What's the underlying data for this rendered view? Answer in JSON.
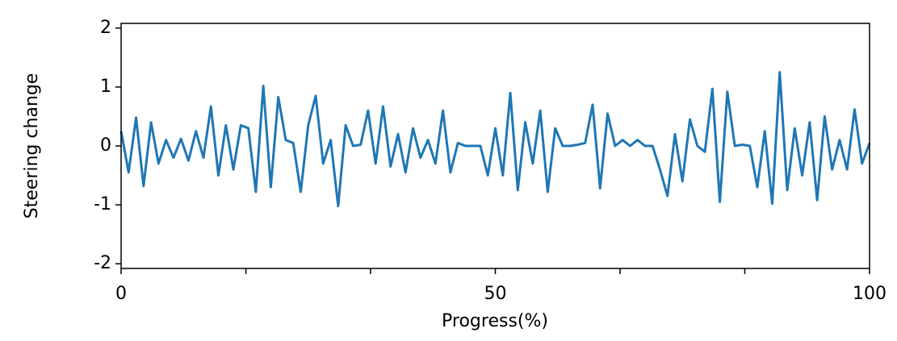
{
  "chart_data": {
    "type": "line",
    "xlabel": "Progress(%)",
    "ylabel": "Steering change",
    "x": [
      0,
      1,
      2,
      3,
      4,
      5,
      6,
      7,
      8,
      9,
      10,
      11,
      12,
      13,
      14,
      15,
      16,
      17,
      18,
      19,
      20,
      21,
      22,
      23,
      24,
      25,
      26,
      27,
      28,
      29,
      30,
      31,
      32,
      33,
      34,
      35,
      36,
      37,
      38,
      39,
      40,
      41,
      42,
      43,
      44,
      45,
      46,
      47,
      48,
      49,
      50,
      51,
      52,
      53,
      54,
      55,
      56,
      57,
      58,
      59,
      60,
      61,
      62,
      63,
      64,
      65,
      66,
      67,
      68,
      69,
      70,
      71,
      72,
      73,
      74,
      75,
      76,
      77,
      78,
      79,
      80,
      81,
      82,
      83,
      84,
      85,
      86,
      87,
      88,
      89,
      90,
      91,
      92,
      93,
      94,
      95,
      96,
      97,
      98,
      99,
      100
    ],
    "series": [
      {
        "color": "#1f77b4",
        "values": [
          0.25,
          -0.45,
          0.48,
          -0.68,
          0.4,
          -0.3,
          0.1,
          -0.2,
          0.12,
          -0.25,
          0.25,
          -0.2,
          0.67,
          -0.5,
          0.35,
          -0.4,
          0.35,
          0.3,
          -0.78,
          1.02,
          -0.7,
          0.83,
          0.1,
          0.05,
          -0.78,
          0.35,
          0.85,
          -0.3,
          0.1,
          -1.02,
          0.35,
          0.0,
          0.02,
          0.6,
          -0.3,
          0.67,
          -0.35,
          0.2,
          -0.45,
          0.3,
          -0.2,
          0.1,
          -0.3,
          0.6,
          -0.45,
          0.05,
          0.0,
          0.0,
          0.0,
          -0.5,
          0.3,
          -0.5,
          0.9,
          -0.75,
          0.4,
          -0.3,
          0.6,
          -0.78,
          0.3,
          0.0,
          0.0,
          0.02,
          0.05,
          0.7,
          -0.72,
          0.55,
          0.0,
          0.1,
          0.0,
          0.1,
          0.0,
          0.0,
          -0.4,
          -0.85,
          0.2,
          -0.6,
          0.45,
          0.0,
          -0.1,
          0.97,
          -0.95,
          0.92,
          0.0,
          0.02,
          0.0,
          -0.7,
          0.25,
          -0.98,
          1.25,
          -0.75,
          0.3,
          -0.5,
          0.4,
          -0.92,
          0.5,
          -0.4,
          0.1,
          -0.4,
          0.62,
          -0.3,
          0.05
        ]
      }
    ],
    "xlim": [
      0,
      100
    ],
    "ylim": [
      -2.08,
      2.08
    ],
    "xticks": [
      0,
      {
        "value": 16.67,
        "label": null
      },
      {
        "value": 33.33,
        "label": null
      },
      50,
      {
        "value": 66.67,
        "label": null
      },
      {
        "value": 83.33,
        "label": null
      },
      100
    ],
    "yticks": [
      -2,
      -1,
      0,
      1,
      2
    ],
    "grid": false
  }
}
